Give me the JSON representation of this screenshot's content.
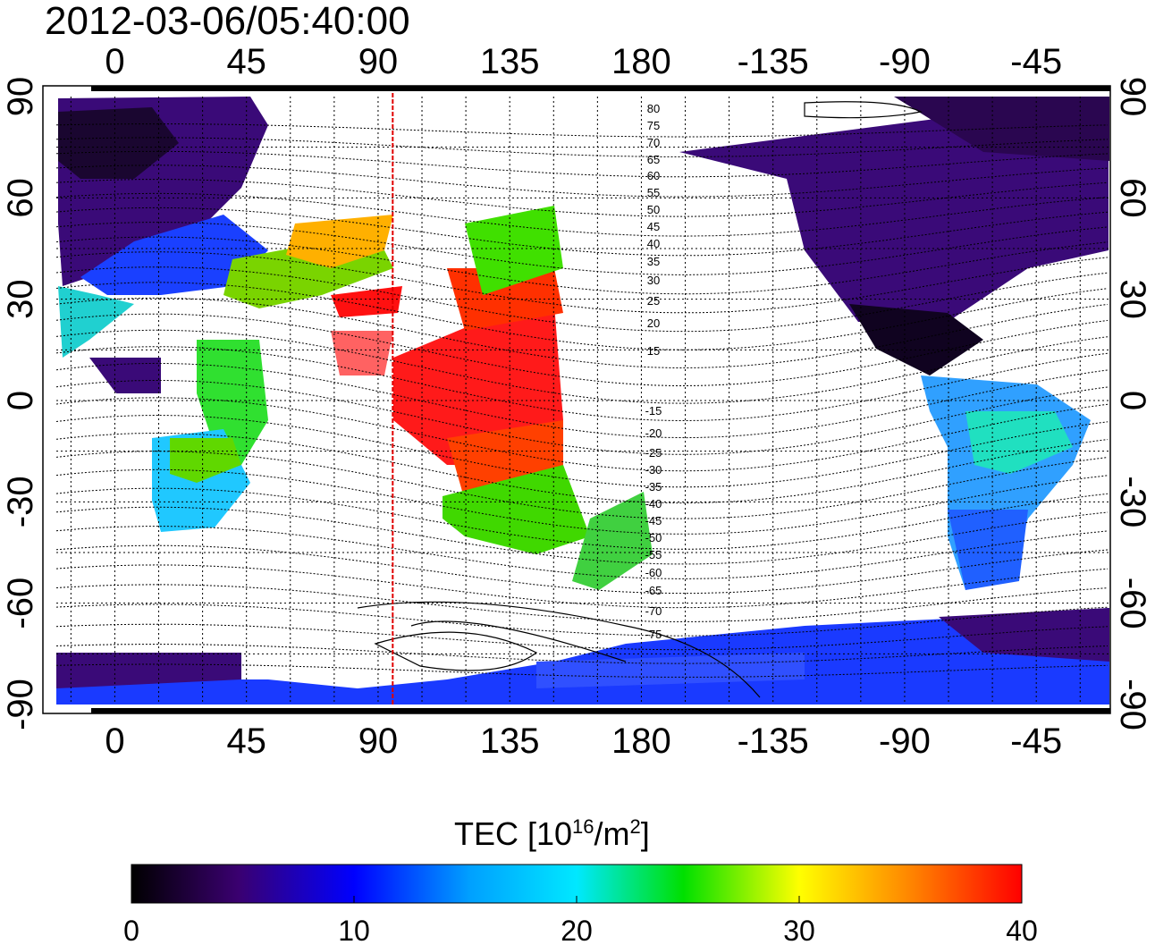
{
  "title": "2012-03-06/05:40:00",
  "map": {
    "top_ticks": [
      "0",
      "45",
      "90",
      "135",
      "180",
      "-135",
      "-90",
      "-45"
    ],
    "bottom_ticks": [
      "0",
      "45",
      "90",
      "135",
      "180",
      "-135",
      "-90",
      "-45"
    ],
    "left_ticks": [
      "90",
      "60",
      "30",
      "0",
      "-30",
      "-60",
      "-90"
    ],
    "right_ticks": [
      "90",
      "60",
      "30",
      "0",
      "-30",
      "-60",
      "-90"
    ],
    "marker_longitude": 95,
    "marker_color": "#e00000",
    "contour_labels_north": [
      "80",
      "75",
      "70",
      "65",
      "60",
      "55",
      "50",
      "45",
      "40",
      "35",
      "30",
      "25",
      "20",
      "15"
    ],
    "contour_labels_south": [
      "-15",
      "-20",
      "-25",
      "-30",
      "-35",
      "-40",
      "-45",
      "-50",
      "-55",
      "-60",
      "-65",
      "-70",
      "-75"
    ]
  },
  "colorbar": {
    "label_main": "TEC  [10",
    "label_exp1": "16",
    "label_mid": "/m",
    "label_exp2": "2",
    "label_end": "]",
    "ticks": [
      "0",
      "10",
      "20",
      "30",
      "40"
    ],
    "min": 0,
    "max": 40,
    "colormap": [
      "#000000",
      "#3a0070",
      "#0000ff",
      "#00e8ff",
      "#00e000",
      "#ffff00",
      "#ff8000",
      "#ff0000"
    ]
  }
}
